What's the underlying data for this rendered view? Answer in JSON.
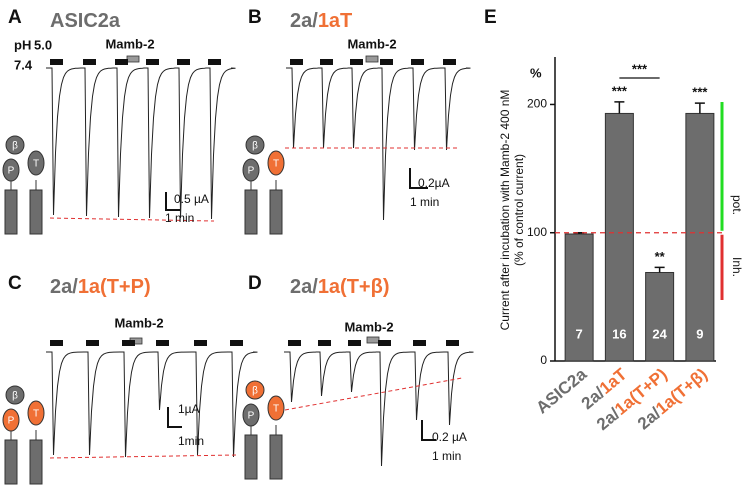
{
  "panels": [
    {
      "letter": "A",
      "title": [
        {
          "text": "ASIC2a",
          "color": "#6d6d6d"
        }
      ],
      "ph_label": "pH",
      "ph_high": "5.0",
      "ph_low": "7.4",
      "drug": "Mamb-2",
      "scale_y": "0.5 µA",
      "scale_x": "1 min",
      "subunits": [
        {
          "label": "β",
          "color": "#6d6d6d"
        },
        {
          "label": "P",
          "color": "#6d6d6d"
        },
        {
          "label": "T",
          "color": "#6d6d6d"
        }
      ]
    },
    {
      "letter": "B",
      "title": [
        {
          "text": "2a/",
          "color": "#6d6d6d"
        },
        {
          "text": "1aT",
          "color": "#f07035"
        }
      ],
      "drug": "Mamb-2",
      "scale_y": "0.2µA",
      "scale_x": "1 min",
      "subunits": [
        {
          "label": "β",
          "color": "#6d6d6d"
        },
        {
          "label": "P",
          "color": "#6d6d6d"
        },
        {
          "label": "T",
          "color": "#f07035"
        }
      ]
    },
    {
      "letter": "C",
      "title": [
        {
          "text": "2a/",
          "color": "#6d6d6d"
        },
        {
          "text": "1a(T+P)",
          "color": "#f07035"
        }
      ],
      "drug": "Mamb-2",
      "scale_y": "1µA",
      "scale_x": "1min",
      "subunits": [
        {
          "label": "β",
          "color": "#6d6d6d"
        },
        {
          "label": "P",
          "color": "#f07035"
        },
        {
          "label": "T",
          "color": "#f07035"
        }
      ]
    },
    {
      "letter": "D",
      "title": [
        {
          "text": "2a/",
          "color": "#6d6d6d"
        },
        {
          "text": "1a(T+β)",
          "color": "#f07035"
        }
      ],
      "drug": "Mamb-2",
      "scale_y": "0.2 µA",
      "scale_x": "1 min",
      "subunits": [
        {
          "label": "β",
          "color": "#f07035"
        },
        {
          "label": "P",
          "color": "#6d6d6d"
        },
        {
          "label": "T",
          "color": "#f07035"
        }
      ]
    }
  ],
  "chart_data": {
    "type": "bar",
    "letter": "E",
    "unit": "%",
    "ylabel": [
      "Current after incubation with Mamb-2 400 nM",
      "(% of  control current)"
    ],
    "categories": [
      [
        "ASIC2a"
      ],
      [
        "2a/",
        "1aT"
      ],
      [
        "2a/",
        "1a(T+P)"
      ],
      [
        "2a/",
        "1a(T+β)"
      ]
    ],
    "values": [
      99,
      193,
      69,
      193
    ],
    "errors": [
      1,
      9,
      4,
      8
    ],
    "n": [
      "7",
      "16",
      "24",
      "9"
    ],
    "significance": [
      "",
      "***",
      "**",
      "***"
    ],
    "bracket": "***",
    "color": "#6d6d6d",
    "ylim": [
      0,
      237
    ],
    "yticks": [
      0,
      100,
      200
    ],
    "reference_line": 100,
    "potentiation_label": "pot.",
    "inhibition_label": "Inh."
  }
}
